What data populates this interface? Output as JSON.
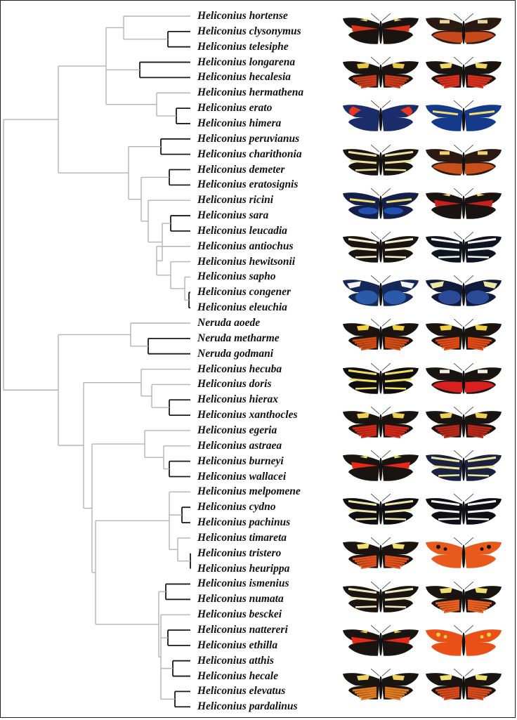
{
  "taxa": [
    "Heliconius hortense",
    "Heliconius clysonymus",
    "Heliconius telesiphe",
    "Heliconius longarena",
    "Heliconius hecalesia",
    "Heliconius hermathena",
    "Heliconius erato",
    "Heliconius himera",
    "Heliconius peruvianus",
    "Heliconius charithonia",
    "Heliconius demeter",
    "Heliconius eratosignis",
    "Heliconius ricini",
    "Heliconius sara",
    "Heliconius leucadia",
    "Heliconius antiochus",
    "Heliconius hewitsonii",
    "Heliconius sapho",
    "Heliconius congener",
    "Heliconius eleuchia",
    "Neruda aoede",
    "Neruda metharme",
    "Neruda godmani",
    "Heliconius hecuba",
    "Heliconius doris",
    "Heliconius hierax",
    "Heliconius xanthocles",
    "Heliconius egeria",
    "Heliconius astraea",
    "Heliconius burneyi",
    "Heliconius wallacei",
    "Heliconius melpomene",
    "Heliconius cydno",
    "Heliconius pachinus",
    "Heliconius timareta",
    "Heliconius tristero",
    "Heliconius heurippa",
    "Heliconius ismenius",
    "Heliconius numata",
    "Heliconius besckei",
    "Heliconius nattereri",
    "Heliconius ethilla",
    "Heliconius atthis",
    "Heliconius hecale",
    "Heliconius elevatus",
    "Heliconius pardalinus"
  ],
  "colors": {
    "branch": "#b4b4b4",
    "terminal_branch": "#1a1a1a",
    "label": "#111111"
  },
  "butterflies": [
    {
      "row": 0,
      "col": 0,
      "base": "#1a1410",
      "patch": "#d8321c",
      "band": "#e8d060",
      "style": "fw-red"
    },
    {
      "row": 0,
      "col": 1,
      "base": "#2a1a12",
      "patch": "#c84a1c",
      "band": "#e8d8a0",
      "style": "orange-hind"
    },
    {
      "row": 1,
      "col": 0,
      "base": "#1a1410",
      "patch": "#c83a1c",
      "band": "#e8c840",
      "style": "rays"
    },
    {
      "row": 1,
      "col": 1,
      "base": "#1a1410",
      "patch": "#d8301c",
      "band": "#f0d860",
      "style": "rays"
    },
    {
      "row": 2,
      "col": 0,
      "base": "#1a2c6a",
      "patch": "#e83820",
      "band": "#f0e060",
      "style": "blue-red"
    },
    {
      "row": 2,
      "col": 1,
      "base": "#163a8a",
      "patch": "#163a8a",
      "band": "#f0e070",
      "style": "blue-yellow"
    },
    {
      "row": 3,
      "col": 0,
      "base": "#1a1410",
      "patch": "#1a1410",
      "band": "#f0e0a0",
      "style": "zebra"
    },
    {
      "row": 3,
      "col": 1,
      "base": "#2a1a12",
      "patch": "#c8501c",
      "band": "#f0d070",
      "style": "orange-hind"
    },
    {
      "row": 4,
      "col": 0,
      "base": "#14204a",
      "patch": "#2050b0",
      "band": "#f0e070",
      "style": "blue-yellow"
    },
    {
      "row": 4,
      "col": 1,
      "base": "#1a1410",
      "patch": "#c8201c",
      "band": "#f0e070",
      "style": "fw-red"
    },
    {
      "row": 5,
      "col": 0,
      "base": "#1a1410",
      "patch": "#1a1410",
      "band": "#f4f0d0",
      "style": "zebra"
    },
    {
      "row": 5,
      "col": 1,
      "base": "#0e1420",
      "patch": "#0e1420",
      "band": "#f4f4f0",
      "style": "white-band"
    },
    {
      "row": 6,
      "col": 0,
      "base": "#14285a",
      "patch": "#2a5aa8",
      "band": "#f4f4f4",
      "style": "blue-white"
    },
    {
      "row": 6,
      "col": 1,
      "base": "#101a3a",
      "patch": "#2a4a98",
      "band": "#f0e8a0",
      "style": "blue-white"
    },
    {
      "row": 7,
      "col": 0,
      "base": "#1a1410",
      "patch": "#d04a14",
      "band": "#f0d040",
      "style": "tiger"
    },
    {
      "row": 7,
      "col": 1,
      "base": "#1a1410",
      "patch": "#e04a14",
      "band": "#f0d040",
      "style": "tiger"
    },
    {
      "row": 8,
      "col": 0,
      "base": "#0e0e0e",
      "patch": "#0e0e0e",
      "band": "#f0e060",
      "style": "white-band"
    },
    {
      "row": 8,
      "col": 1,
      "base": "#1a1410",
      "patch": "#d82020",
      "band": "#f4f0e0",
      "style": "red-hind"
    },
    {
      "row": 9,
      "col": 0,
      "base": "#1a1410",
      "patch": "#d02818",
      "band": "#f0d050",
      "style": "rays"
    },
    {
      "row": 9,
      "col": 1,
      "base": "#1a1410",
      "patch": "#b82818",
      "band": "#f0d050",
      "style": "rays"
    },
    {
      "row": 10,
      "col": 0,
      "base": "#1a1410",
      "patch": "#e8281c",
      "band": "#f0e060",
      "style": "fw-red"
    },
    {
      "row": 10,
      "col": 1,
      "base": "#1a2240",
      "patch": "#1a2240",
      "band": "#f0e8a0",
      "style": "white-band"
    },
    {
      "row": 11,
      "col": 0,
      "base": "#0e0e14",
      "patch": "#0e0e14",
      "band": "#f0e8a0",
      "style": "white-band"
    },
    {
      "row": 11,
      "col": 1,
      "base": "#0e0e14",
      "patch": "#0e0e14",
      "band": "#f4f4f0",
      "style": "white-band"
    },
    {
      "row": 12,
      "col": 0,
      "base": "#1a1410",
      "patch": "#e0501c",
      "band": "#f0e070",
      "style": "tiger"
    },
    {
      "row": 12,
      "col": 1,
      "base": "#e85a1c",
      "patch": "#e85a1c",
      "band": "#1a1410",
      "style": "orange-full"
    },
    {
      "row": 13,
      "col": 0,
      "base": "#1a1410",
      "patch": "#1a1410",
      "band": "#f0e8c0",
      "style": "white-band"
    },
    {
      "row": 13,
      "col": 1,
      "base": "#1a1410",
      "patch": "#e86020",
      "band": "#f0e070",
      "style": "tiger"
    },
    {
      "row": 14,
      "col": 0,
      "base": "#1a1410",
      "patch": "#e82818",
      "band": "#f0d040",
      "style": "fw-red"
    },
    {
      "row": 14,
      "col": 1,
      "base": "#e85018",
      "patch": "#d82818",
      "band": "#f0d040",
      "style": "orange-full"
    },
    {
      "row": 15,
      "col": 0,
      "base": "#1a1410",
      "patch": "#e07a20",
      "band": "#f0d060",
      "style": "tiger"
    },
    {
      "row": 15,
      "col": 1,
      "base": "#1a1410",
      "patch": "#d84a1c",
      "band": "#f0e070",
      "style": "tiger"
    }
  ]
}
